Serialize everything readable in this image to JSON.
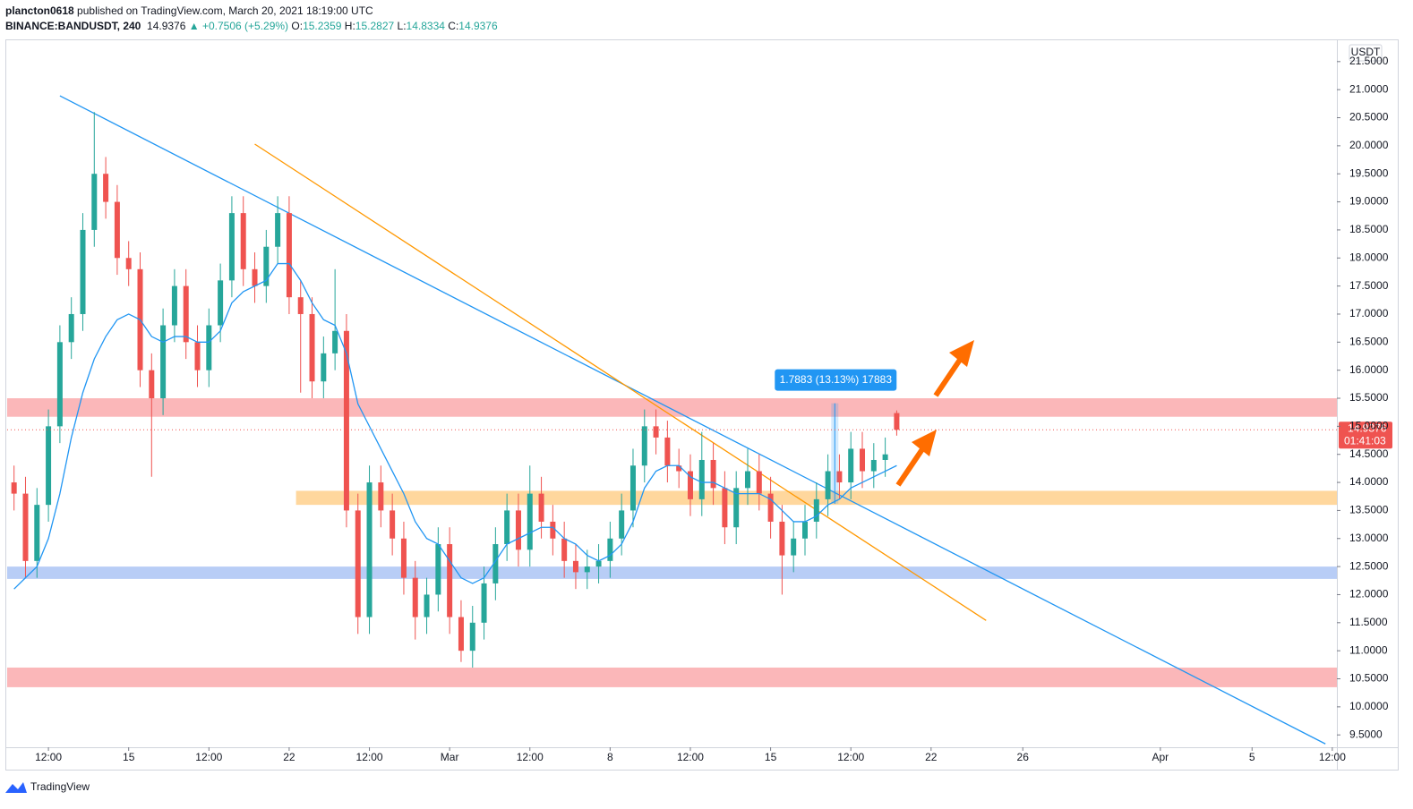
{
  "header": {
    "user": "plancton0618",
    "published": "published on TradingView.com, March 20, 2021 18:19:00 UTC",
    "symbol": "BINANCE:BANDUSDT, 240",
    "price": "14.9376",
    "change": "▲ +0.7506 (+5.29%)",
    "o_label": "O:",
    "o": "15.2359",
    "h_label": "H:",
    "h": "15.2827",
    "l_label": "L:",
    "l": "14.8334",
    "c_label": "C:",
    "c": "14.9376"
  },
  "footer": {
    "logo": "TradingView"
  },
  "chart_data": {
    "type": "candlestick",
    "x": [
      9,
      9.5,
      10,
      10.5,
      11,
      11.5,
      12,
      12.5,
      13,
      13.5,
      14,
      14.5,
      15,
      15.5,
      16,
      16.5,
      17,
      17.5,
      18,
      18.5,
      19,
      19.5,
      20,
      20.5,
      21,
      21.5,
      22,
      22.5,
      23,
      23.5,
      24,
      24.5,
      25,
      25.5,
      26,
      26.5,
      27,
      27.5,
      28,
      28.5,
      29,
      29.5,
      30,
      30.5,
      31,
      31.5,
      32,
      32.5,
      33,
      33.5,
      34,
      34.5,
      35,
      35.5,
      36,
      36.5,
      37,
      37.5,
      38,
      38.5,
      39,
      39.5,
      40,
      40.5,
      41,
      41.5,
      42,
      42.5,
      43,
      43.5,
      44,
      44.5,
      45,
      45.5,
      46,
      46.5,
      47,
      47.5
    ],
    "open": [
      14.0,
      13.8,
      12.6,
      13.6,
      15.0,
      16.5,
      17.0,
      18.5,
      19.5,
      19.0,
      18.0,
      17.8,
      16.0,
      15.5,
      16.8,
      17.5,
      16.5,
      16.0,
      16.8,
      17.6,
      18.8,
      17.8,
      17.5,
      18.2,
      18.8,
      17.3,
      17.0,
      15.8,
      16.3,
      16.7,
      13.5,
      11.6,
      14.0,
      13.5,
      13.0,
      12.3,
      11.6,
      12.0,
      12.9,
      11.6,
      11.0,
      11.5,
      12.2,
      12.9,
      13.5,
      12.8,
      13.8,
      13.3,
      13.0,
      12.6,
      12.4,
      12.5,
      12.6,
      13.0,
      13.5,
      14.3,
      15.0,
      14.8,
      14.3,
      14.2,
      13.7,
      14.4,
      13.9,
      13.2,
      13.9,
      14.2,
      13.8,
      13.3,
      12.7,
      13.0,
      13.3,
      13.7,
      14.2,
      14.0,
      14.6,
      14.2,
      14.4,
      15.2359
    ],
    "high": [
      14.3,
      14.1,
      13.9,
      15.3,
      16.8,
      17.3,
      18.8,
      20.6,
      19.8,
      19.3,
      18.3,
      18.1,
      16.3,
      17.1,
      17.8,
      17.8,
      16.8,
      17.1,
      17.9,
      19.1,
      19.1,
      18.1,
      18.5,
      19.1,
      19.1,
      17.6,
      17.3,
      16.6,
      17.8,
      17.0,
      13.8,
      14.3,
      14.3,
      13.8,
      13.3,
      12.6,
      12.3,
      13.2,
      13.2,
      11.9,
      11.8,
      12.5,
      13.2,
      13.8,
      13.8,
      14.3,
      14.1,
      13.6,
      13.3,
      12.9,
      12.8,
      12.9,
      13.3,
      13.8,
      14.6,
      15.3,
      15.3,
      15.1,
      14.6,
      14.5,
      14.9,
      14.7,
      14.2,
      14.2,
      14.6,
      14.5,
      14.1,
      13.6,
      13.3,
      13.6,
      14.0,
      14.5,
      14.5,
      14.9,
      14.9,
      14.7,
      14.8,
      15.2827
    ],
    "low": [
      13.5,
      12.3,
      12.3,
      13.3,
      14.7,
      16.2,
      16.7,
      18.2,
      18.7,
      17.7,
      17.5,
      15.7,
      14.1,
      15.2,
      16.5,
      16.2,
      15.7,
      15.7,
      16.5,
      17.3,
      17.5,
      17.2,
      17.2,
      17.9,
      17.0,
      15.6,
      15.5,
      15.5,
      16.0,
      13.2,
      11.3,
      11.3,
      13.2,
      12.7,
      12.0,
      11.2,
      11.3,
      11.7,
      11.3,
      10.8,
      10.7,
      11.2,
      11.9,
      12.6,
      12.5,
      12.5,
      13.0,
      12.7,
      12.3,
      12.1,
      12.1,
      12.2,
      12.3,
      12.7,
      13.2,
      14.0,
      14.5,
      14.0,
      13.9,
      13.4,
      13.4,
      13.6,
      12.9,
      12.9,
      13.6,
      13.5,
      13.0,
      12.0,
      12.4,
      12.7,
      13.0,
      13.4,
      13.7,
      13.7,
      13.9,
      13.9,
      14.1,
      14.8334
    ],
    "close": [
      13.8,
      12.6,
      13.6,
      15.0,
      16.5,
      17.0,
      18.5,
      19.5,
      19.0,
      18.0,
      17.8,
      16.0,
      15.5,
      16.8,
      17.5,
      16.5,
      16.0,
      16.8,
      17.6,
      18.8,
      17.8,
      17.5,
      18.2,
      18.8,
      17.3,
      17.0,
      15.8,
      16.3,
      16.7,
      13.5,
      11.6,
      14.0,
      13.5,
      13.0,
      12.3,
      11.6,
      12.0,
      12.9,
      11.6,
      11.0,
      11.5,
      12.2,
      12.9,
      13.5,
      12.8,
      13.8,
      13.3,
      13.0,
      12.6,
      12.4,
      12.5,
      12.6,
      13.0,
      13.5,
      14.3,
      15.0,
      14.8,
      14.3,
      14.2,
      13.7,
      14.4,
      13.9,
      13.2,
      13.9,
      14.2,
      13.8,
      13.3,
      12.7,
      13.0,
      13.3,
      13.7,
      14.2,
      14.0,
      14.6,
      14.2,
      14.4,
      14.5,
      14.9376
    ],
    "up_color": "#26a69a",
    "down_color": "#ef5350",
    "moving_average": {
      "color": "#2196f3",
      "values": [
        12.1,
        12.3,
        12.5,
        13.0,
        13.8,
        14.8,
        15.6,
        16.2,
        16.6,
        16.9,
        17.0,
        16.9,
        16.6,
        16.5,
        16.6,
        16.6,
        16.5,
        16.5,
        16.7,
        17.2,
        17.4,
        17.5,
        17.6,
        17.9,
        17.9,
        17.6,
        17.2,
        16.9,
        16.8,
        16.3,
        15.4,
        15.0,
        14.6,
        14.2,
        13.8,
        13.3,
        13.0,
        12.9,
        12.6,
        12.3,
        12.2,
        12.3,
        12.6,
        12.9,
        13.0,
        13.1,
        13.2,
        13.2,
        13.0,
        12.9,
        12.7,
        12.6,
        12.7,
        12.9,
        13.3,
        13.9,
        14.2,
        14.3,
        14.3,
        14.1,
        14.0,
        14.0,
        13.9,
        13.8,
        13.8,
        13.8,
        13.7,
        13.5,
        13.3,
        13.3,
        13.4,
        13.6,
        13.7,
        13.9,
        14.0,
        14.1,
        14.2,
        14.3
      ]
    },
    "xlim": [
      8.7,
      66.7
    ],
    "ylim": [
      9.28,
      21.88
    ],
    "grid": false,
    "xticks": [
      {
        "value": 10.5,
        "label": "12:00"
      },
      {
        "value": 14,
        "label": "15"
      },
      {
        "value": 17.5,
        "label": "12:00"
      },
      {
        "value": 21,
        "label": "22"
      },
      {
        "value": 24.5,
        "label": "12:00"
      },
      {
        "value": 28,
        "label": "Mar"
      },
      {
        "value": 31.5,
        "label": "12:00"
      },
      {
        "value": 35,
        "label": "8"
      },
      {
        "value": 38.5,
        "label": "12:00"
      },
      {
        "value": 42,
        "label": "15"
      },
      {
        "value": 45.5,
        "label": "12:00"
      },
      {
        "value": 49,
        "label": "22"
      },
      {
        "value": 53,
        "label": "26"
      },
      {
        "value": 59,
        "label": "Apr"
      },
      {
        "value": 63,
        "label": "5"
      },
      {
        "value": 66.5,
        "label": "12:00"
      }
    ],
    "yticks": [
      {
        "value": 9.5,
        "label": "9.5000"
      },
      {
        "value": 10,
        "label": "10.0000"
      },
      {
        "value": 10.5,
        "label": "10.5000"
      },
      {
        "value": 11,
        "label": "11.0000"
      },
      {
        "value": 11.5,
        "label": "11.5000"
      },
      {
        "value": 12,
        "label": "12.0000"
      },
      {
        "value": 12.5,
        "label": "12.5000"
      },
      {
        "value": 13,
        "label": "13.0000"
      },
      {
        "value": 13.5,
        "label": "13.5000"
      },
      {
        "value": 14,
        "label": "14.0000"
      },
      {
        "value": 14.5,
        "label": "14.5000"
      },
      {
        "value": 15,
        "label": "15.0000"
      },
      {
        "value": 15.5,
        "label": "15.5000"
      },
      {
        "value": 16,
        "label": "16.0000"
      },
      {
        "value": 16.5,
        "label": "16.5000"
      },
      {
        "value": 17,
        "label": "17.0000"
      },
      {
        "value": 17.5,
        "label": "17.5000"
      },
      {
        "value": 18,
        "label": "18.0000"
      },
      {
        "value": 18.5,
        "label": "18.5000"
      },
      {
        "value": 19,
        "label": "19.0000"
      },
      {
        "value": 19.5,
        "label": "19.5000"
      },
      {
        "value": 20,
        "label": "20.0000"
      },
      {
        "value": 20.5,
        "label": "20.5000"
      },
      {
        "value": 21,
        "label": "21.0000"
      },
      {
        "value": 21.5,
        "label": "21.5000"
      }
    ],
    "currency": "USDT",
    "last_price": 14.9376,
    "countdown": "01:41:03",
    "trendlines": [
      {
        "x": [
          11.0,
          66.2
        ],
        "values": [
          20.89,
          9.34
        ],
        "color": "#2196f3"
      },
      {
        "x": [
          19.5,
          51.4
        ],
        "values": [
          20.03,
          11.54
        ],
        "color": "#ff9800"
      }
    ],
    "zones": [
      {
        "x": [
          8.7,
          66.7
        ],
        "range": [
          15.17,
          15.5
        ],
        "color": "#f77c80"
      },
      {
        "x": [
          8.7,
          66.7
        ],
        "range": [
          10.35,
          10.7
        ],
        "color": "#f77c80"
      },
      {
        "x": [
          21.3,
          66.7
        ],
        "range": [
          13.6,
          13.85
        ],
        "color": "#ffb74d"
      },
      {
        "x": [
          8.7,
          66.7
        ],
        "range": [
          12.28,
          12.5
        ],
        "color": "#7da4ee"
      }
    ],
    "measure": {
      "x": 44.8,
      "values": [
        13.62,
        15.41
      ],
      "label": "1.7883 (13.13%) 17883"
    }
  }
}
